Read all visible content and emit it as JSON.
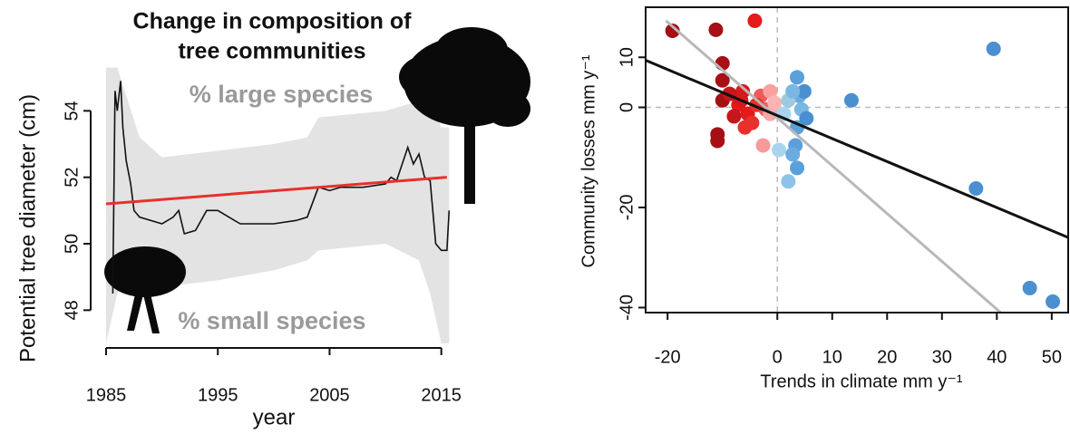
{
  "chart_data": [
    {
      "type": "line",
      "title": [
        "Change in composition of",
        "tree communities"
      ],
      "annotations": [
        "% large species",
        "% small species"
      ],
      "xlabel": "year",
      "ylabel": "Potential tree diameter (cm)",
      "xlim": [
        1985,
        2016
      ],
      "ylim": [
        47,
        55.4
      ],
      "xticks": [
        1985,
        1995,
        2005,
        2015
      ],
      "yticks": [
        48,
        50,
        52,
        54
      ],
      "band": {
        "color": "#e3e3e3",
        "x": [
          1985,
          1986,
          1988,
          1990,
          1995,
          2000,
          2003,
          2004,
          2010,
          2013,
          2014,
          2015,
          2015.7
        ],
        "upper": [
          55.3,
          55.3,
          53.2,
          52.6,
          52.8,
          53.0,
          53.2,
          53.8,
          54.0,
          54.3,
          54.5,
          53.5,
          53.5
        ],
        "lower": [
          47.0,
          48.5,
          49.2,
          48.7,
          48.9,
          49.2,
          49.5,
          49.8,
          50.0,
          49.5,
          48.5,
          47.0,
          47.0
        ]
      },
      "series": [
        {
          "color": "#111111",
          "x": [
            1985.6,
            1985.8,
            1986.0,
            1986.3,
            1986.5,
            1986.8,
            1987.2,
            1987.5,
            1988,
            1990,
            1991,
            1991.5,
            1992,
            1993,
            1994,
            1995,
            1996,
            1997,
            2000,
            2002,
            2003,
            2004,
            2005,
            2006,
            2008,
            2010,
            2010.5,
            2011,
            2012,
            2012.5,
            2013,
            2013.5,
            2014,
            2014.5,
            2015,
            2015.5,
            2015.7
          ],
          "values": [
            48.5,
            54.6,
            54.0,
            54.9,
            53.5,
            52.5,
            51.8,
            51.0,
            50.8,
            50.6,
            50.8,
            51.0,
            50.3,
            50.4,
            51.0,
            51.0,
            50.8,
            50.6,
            50.6,
            50.7,
            50.8,
            51.7,
            51.6,
            51.7,
            51.7,
            51.8,
            52.0,
            51.9,
            52.9,
            52.4,
            52.7,
            52.0,
            51.9,
            50.0,
            49.8,
            49.8,
            51.0
          ]
        },
        {
          "color": "#e8302c",
          "x": [
            1985,
            2015.5
          ],
          "values": [
            51.2,
            52.0
          ]
        }
      ]
    },
    {
      "type": "scatter",
      "xlabel": "Trends in climate mm y⁻¹",
      "ylabel": "Community losses mm y⁻¹",
      "xlim": [
        -24,
        53
      ],
      "ylim": [
        -41,
        20
      ],
      "xticks": [
        -20,
        0,
        10,
        20,
        30,
        40,
        50
      ],
      "yticks": [
        -40,
        -20,
        0,
        10
      ],
      "ref_x": 0,
      "ref_y": 0,
      "points": {
        "x": [
          -19.1,
          -11.2,
          -4.1,
          -10,
          -10,
          -10,
          -6.3,
          -7.1,
          -5.4,
          -4.6,
          -3,
          -2.1,
          -7.9,
          -6.6,
          -8.7,
          -3.8,
          -2.6,
          -5.9,
          -10.9,
          -10.9,
          -1.3,
          -1.3,
          -0.5,
          0.3,
          2,
          3.6,
          4,
          4.4,
          3.6,
          3.3,
          3.6,
          2.8,
          4.9,
          5.3,
          2,
          1.2,
          2.8,
          13.5,
          39.4,
          36.2,
          46,
          50.2
        ],
        "values": [
          15.3,
          15.5,
          17.3,
          8.8,
          5.4,
          1.4,
          3.2,
          0.5,
          -1.3,
          -3.1,
          2.3,
          -0.4,
          -1.8,
          1.4,
          2.7,
          0.5,
          -7.6,
          -4,
          -5.4,
          -6.7,
          3.2,
          -1.3,
          0.9,
          -8.5,
          -14.8,
          6,
          2.3,
          -0.4,
          -4,
          -7.6,
          -12.1,
          -9.4,
          3.2,
          -2.2,
          1.4,
          -1.3,
          3.2,
          1.4,
          11.7,
          -16.2,
          -36.1,
          -38.8
        ],
        "colors": [
          "#a50f15",
          "#a50f15",
          "#e41a1c",
          "#a50f15",
          "#a50f15",
          "#a50f15",
          "#d7191c",
          "#e41a1c",
          "#e41a1c",
          "#e8302c",
          "#f15a5a",
          "#f15a5a",
          "#c4161c",
          "#d7191c",
          "#c4161c",
          "#e8302c",
          "#f79a9a",
          "#e8302c",
          "#a50f15",
          "#a50f15",
          "#f9a0a0",
          "#f7a8a8",
          "#fbb4b4",
          "#a8d4ee",
          "#8cc4e8",
          "#5aa0dc",
          "#6aacde",
          "#7ab8e4",
          "#5aa0dc",
          "#5aa0dc",
          "#5aa0dc",
          "#6aacde",
          "#4a90d0",
          "#4a90d0",
          "#9ecae1",
          "#a8d4ee",
          "#7ab8e4",
          "#4a90d0",
          "#4a90d0",
          "#4a90d0",
          "#4a90d0",
          "#4a90d0"
        ]
      },
      "series": [
        {
          "color": "#111111",
          "x": [
            -24,
            53
          ],
          "values": [
            9.4,
            -26
          ]
        },
        {
          "color": "#b8b8b8",
          "x": [
            -20.3,
            40.7
          ],
          "values": [
            17.3,
            -41
          ]
        }
      ]
    }
  ]
}
